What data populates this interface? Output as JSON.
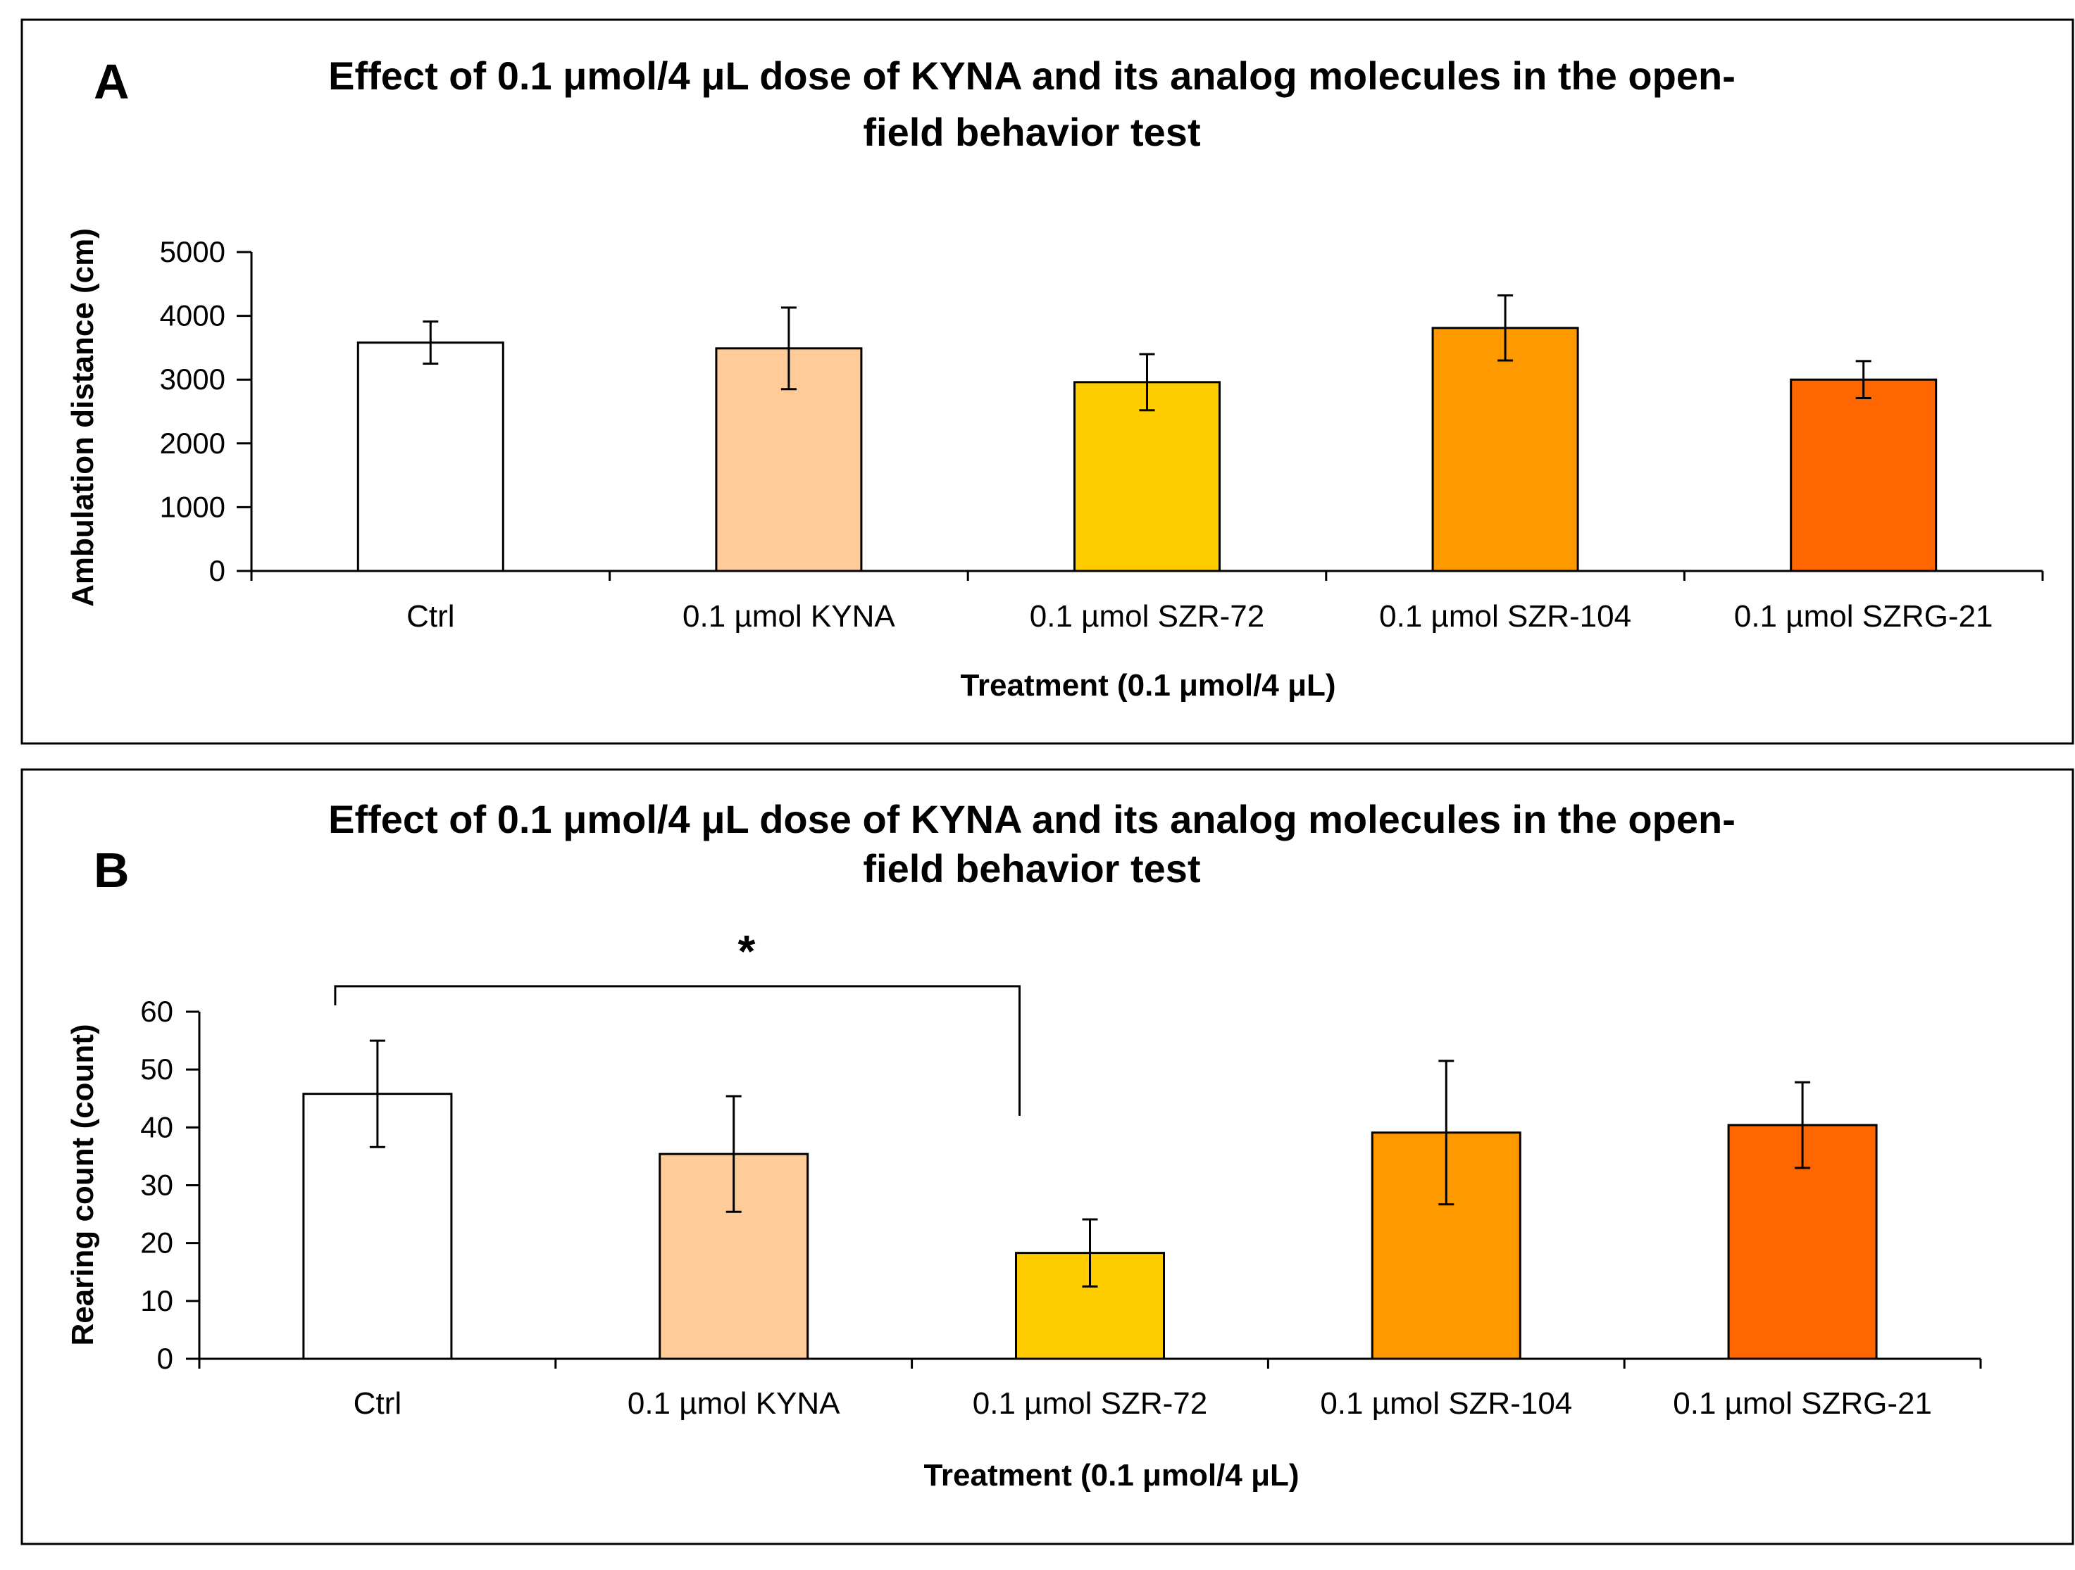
{
  "chart_data": [
    {
      "type": "bar",
      "panel_letter": "A",
      "title_lines": [
        "Effect of 0.1 μmol/4 μL dose of KYNA and its analog molecules in the open-",
        "field behavior test"
      ],
      "xlabel": "Treatment (0.1 μmol/4 μL)",
      "ylabel": "Ambulation distance (cm)",
      "ylim": [
        0,
        5000
      ],
      "yticks": [
        0,
        1000,
        2000,
        3000,
        4000,
        5000
      ],
      "categories": [
        "Ctrl",
        "0.1 µmol KYNA",
        "0.1 µmol SZR-72",
        "0.1 µmol SZR-104",
        "0.1 µmol SZRG-21"
      ],
      "values": [
        3580,
        3490,
        2960,
        3810,
        3000
      ],
      "errors": [
        330,
        640,
        440,
        510,
        290
      ],
      "colors": [
        "#ffffff",
        "#fecb99",
        "#ffcc00",
        "#ff9900",
        "#ff6600"
      ],
      "grid": false
    },
    {
      "type": "bar",
      "panel_letter": "B",
      "title_lines": [
        "Effect of 0.1 μmol/4 μL dose of KYNA  and its analog molecules in the open-",
        "field behavior test"
      ],
      "xlabel": "Treatment (0.1 μmol/4 μL)",
      "ylabel": "Rearing count (count)",
      "ylim": [
        0,
        60
      ],
      "yticks": [
        0,
        10,
        20,
        30,
        40,
        50,
        60
      ],
      "categories": [
        "Ctrl",
        "0.1 µmol KYNA",
        "0.1 µmol SZR-72",
        "0.1 µmol SZR-104",
        "0.1 µmol SZRG-21"
      ],
      "values": [
        45.8,
        35.4,
        18.3,
        39.1,
        40.4
      ],
      "errors": [
        9.2,
        10.0,
        5.8,
        12.4,
        7.4
      ],
      "colors": [
        "#ffffff",
        "#fecb99",
        "#ffcc00",
        "#ff9900",
        "#ff6600"
      ],
      "grid": false,
      "annotations": [
        {
          "text": "*",
          "from_category": 0,
          "to_category": 2,
          "bracket_value": 64.4,
          "end_value": 42
        }
      ]
    }
  ]
}
